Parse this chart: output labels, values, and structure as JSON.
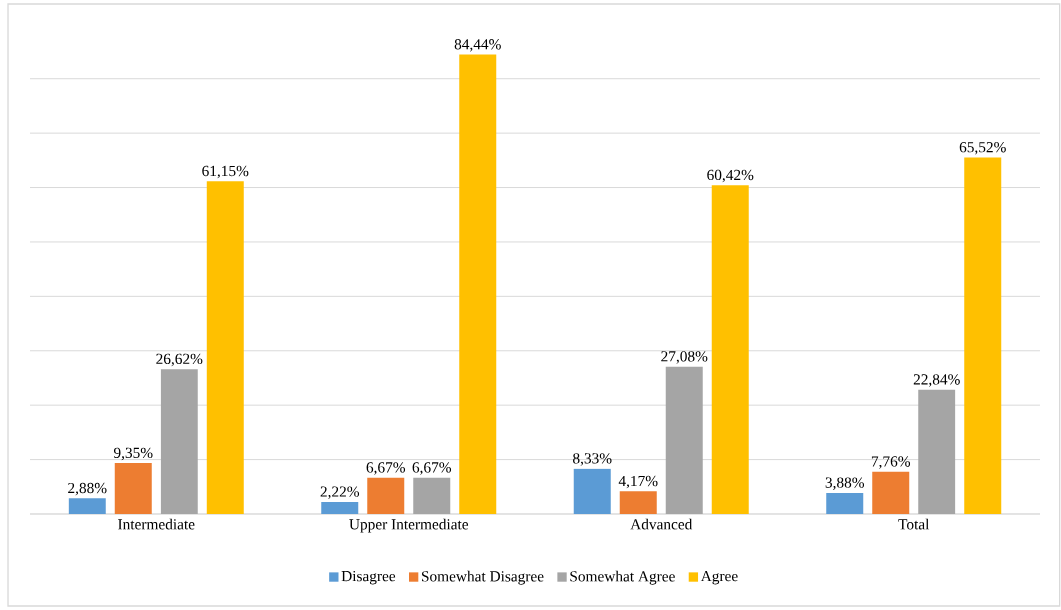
{
  "chart_data": {
    "type": "bar",
    "categories": [
      "Intermediate",
      "Upper Intermediate",
      "Advanced",
      "Total"
    ],
    "series": [
      {
        "name": "Disagree",
        "color": "#5b9bd5",
        "values": [
          2.88,
          2.22,
          8.33,
          3.88
        ],
        "value_labels": [
          "2,88%",
          "2,22%",
          "8,33%",
          "3,88%"
        ]
      },
      {
        "name": "Somewhat Disagree",
        "color": "#ed7d31",
        "values": [
          9.35,
          6.67,
          4.17,
          7.76
        ],
        "value_labels": [
          "9,35%",
          "6,67%",
          "4,17%",
          "7,76%"
        ]
      },
      {
        "name": "Somewhat Agree",
        "color": "#a5a5a5",
        "values": [
          26.62,
          6.67,
          27.08,
          22.84
        ],
        "value_labels": [
          "26,62%",
          "6,67%",
          "27,08%",
          "22,84%"
        ]
      },
      {
        "name": "Agree",
        "color": "#ffc000",
        "values": [
          61.15,
          84.44,
          60.42,
          65.52
        ],
        "value_labels": [
          "61,15%",
          "84,44%",
          "60,42%",
          "65,52%"
        ]
      }
    ],
    "tick_labels": "x",
    "grid": "y",
    "legend": "bottom"
  }
}
